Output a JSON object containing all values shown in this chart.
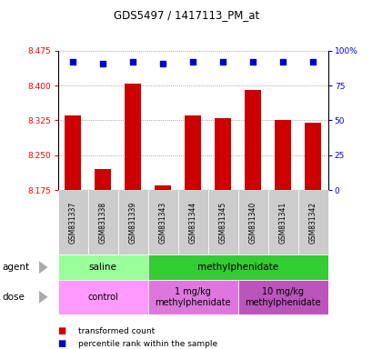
{
  "title": "GDS5497 / 1417113_PM_at",
  "samples": [
    "GSM831337",
    "GSM831338",
    "GSM831339",
    "GSM831343",
    "GSM831344",
    "GSM831345",
    "GSM831340",
    "GSM831341",
    "GSM831342"
  ],
  "bar_values": [
    8.335,
    8.22,
    8.405,
    8.185,
    8.335,
    8.33,
    8.39,
    8.325,
    8.32
  ],
  "percentile_values": [
    92,
    91,
    92,
    91,
    92,
    92,
    92,
    92,
    92
  ],
  "y_min": 8.175,
  "y_max": 8.475,
  "y_ticks": [
    8.175,
    8.25,
    8.325,
    8.4,
    8.475
  ],
  "y2_ticks_pct": [
    0,
    25,
    50,
    75,
    100
  ],
  "y2_labels": [
    "0",
    "25",
    "50",
    "75",
    "100%"
  ],
  "bar_color": "#cc0000",
  "dot_color": "#0000cc",
  "agent_groups": [
    {
      "label": "saline",
      "start": 0,
      "end": 3,
      "color": "#99ff99"
    },
    {
      "label": "methylphenidate",
      "start": 3,
      "end": 9,
      "color": "#33cc33"
    }
  ],
  "dose_groups": [
    {
      "label": "control",
      "start": 0,
      "end": 3,
      "color": "#ff99ff"
    },
    {
      "label": "1 mg/kg\nmethylphenidate",
      "start": 3,
      "end": 6,
      "color": "#dd77dd"
    },
    {
      "label": "10 mg/kg\nmethylphenidate",
      "start": 6,
      "end": 9,
      "color": "#bb55bb"
    }
  ],
  "legend_red_label": "transformed count",
  "legend_blue_label": "percentile rank within the sample",
  "sample_bg_color": "#cccccc",
  "grid_linestyle": ":",
  "grid_color": "#888888",
  "spine_color": "#000000"
}
